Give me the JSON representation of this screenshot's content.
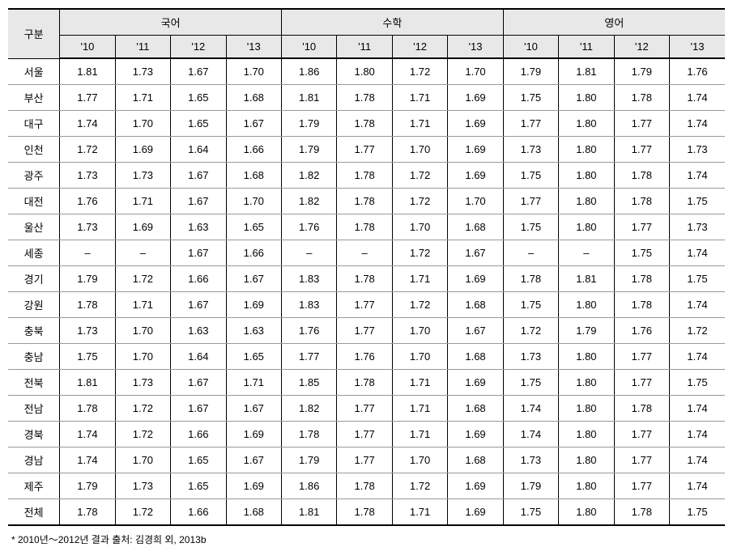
{
  "table": {
    "header": {
      "region_label": "구분",
      "subjects": [
        "국어",
        "수학",
        "영어"
      ],
      "years": [
        "'10",
        "'11",
        "'12",
        "'13"
      ]
    },
    "rows": [
      {
        "region": "서울",
        "values": [
          "1.81",
          "1.73",
          "1.67",
          "1.70",
          "1.86",
          "1.80",
          "1.72",
          "1.70",
          "1.79",
          "1.81",
          "1.79",
          "1.76"
        ]
      },
      {
        "region": "부산",
        "values": [
          "1.77",
          "1.71",
          "1.65",
          "1.68",
          "1.81",
          "1.78",
          "1.71",
          "1.69",
          "1.75",
          "1.80",
          "1.78",
          "1.74"
        ]
      },
      {
        "region": "대구",
        "values": [
          "1.74",
          "1.70",
          "1.65",
          "1.67",
          "1.79",
          "1.78",
          "1.71",
          "1.69",
          "1.77",
          "1.80",
          "1.77",
          "1.74"
        ]
      },
      {
        "region": "인천",
        "values": [
          "1.72",
          "1.69",
          "1.64",
          "1.66",
          "1.79",
          "1.77",
          "1.70",
          "1.69",
          "1.73",
          "1.80",
          "1.77",
          "1.73"
        ]
      },
      {
        "region": "광주",
        "values": [
          "1.73",
          "1.73",
          "1.67",
          "1.68",
          "1.82",
          "1.78",
          "1.72",
          "1.69",
          "1.75",
          "1.80",
          "1.78",
          "1.74"
        ]
      },
      {
        "region": "대전",
        "values": [
          "1.76",
          "1.71",
          "1.67",
          "1.70",
          "1.82",
          "1.78",
          "1.72",
          "1.70",
          "1.77",
          "1.80",
          "1.78",
          "1.75"
        ]
      },
      {
        "region": "울산",
        "values": [
          "1.73",
          "1.69",
          "1.63",
          "1.65",
          "1.76",
          "1.78",
          "1.70",
          "1.68",
          "1.75",
          "1.80",
          "1.77",
          "1.73"
        ]
      },
      {
        "region": "세종",
        "values": [
          "–",
          "–",
          "1.67",
          "1.66",
          "–",
          "–",
          "1.72",
          "1.67",
          "–",
          "–",
          "1.75",
          "1.74"
        ]
      },
      {
        "region": "경기",
        "values": [
          "1.79",
          "1.72",
          "1.66",
          "1.67",
          "1.83",
          "1.78",
          "1.71",
          "1.69",
          "1.78",
          "1.81",
          "1.78",
          "1.75"
        ]
      },
      {
        "region": "강원",
        "values": [
          "1.78",
          "1.71",
          "1.67",
          "1.69",
          "1.83",
          "1.77",
          "1.72",
          "1.68",
          "1.75",
          "1.80",
          "1.78",
          "1.74"
        ]
      },
      {
        "region": "충북",
        "values": [
          "1.73",
          "1.70",
          "1.63",
          "1.63",
          "1.76",
          "1.77",
          "1.70",
          "1.67",
          "1.72",
          "1.79",
          "1.76",
          "1.72"
        ]
      },
      {
        "region": "충남",
        "values": [
          "1.75",
          "1.70",
          "1.64",
          "1.65",
          "1.77",
          "1.76",
          "1.70",
          "1.68",
          "1.73",
          "1.80",
          "1.77",
          "1.74"
        ]
      },
      {
        "region": "전북",
        "values": [
          "1.81",
          "1.73",
          "1.67",
          "1.71",
          "1.85",
          "1.78",
          "1.71",
          "1.69",
          "1.75",
          "1.80",
          "1.77",
          "1.75"
        ]
      },
      {
        "region": "전남",
        "values": [
          "1.78",
          "1.72",
          "1.67",
          "1.67",
          "1.82",
          "1.77",
          "1.71",
          "1.68",
          "1.74",
          "1.80",
          "1.78",
          "1.74"
        ]
      },
      {
        "region": "경북",
        "values": [
          "1.74",
          "1.72",
          "1.66",
          "1.69",
          "1.78",
          "1.77",
          "1.71",
          "1.69",
          "1.74",
          "1.80",
          "1.77",
          "1.74"
        ]
      },
      {
        "region": "경남",
        "values": [
          "1.74",
          "1.70",
          "1.65",
          "1.67",
          "1.79",
          "1.77",
          "1.70",
          "1.68",
          "1.73",
          "1.80",
          "1.77",
          "1.74"
        ]
      },
      {
        "region": "제주",
        "values": [
          "1.79",
          "1.73",
          "1.65",
          "1.69",
          "1.86",
          "1.78",
          "1.72",
          "1.69",
          "1.79",
          "1.80",
          "1.77",
          "1.74"
        ]
      },
      {
        "region": "전체",
        "values": [
          "1.78",
          "1.72",
          "1.66",
          "1.68",
          "1.81",
          "1.78",
          "1.71",
          "1.69",
          "1.75",
          "1.80",
          "1.78",
          "1.75"
        ]
      }
    ]
  },
  "footnote": "* 2010년～2012년 결과 출처: 김경희 외, 2013b",
  "colors": {
    "header_bg": "#e8e8e8",
    "border": "#000000",
    "row_border": "#999999",
    "background": "#ffffff",
    "text": "#000000"
  }
}
